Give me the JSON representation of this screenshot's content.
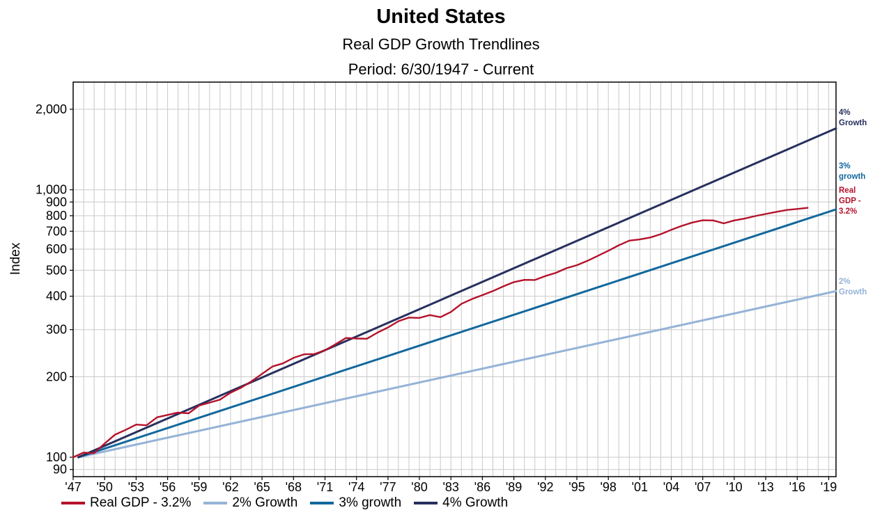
{
  "chart_data": {
    "type": "line",
    "title": "United States",
    "subtitle": "Real GDP Growth Trendlines",
    "period": "Period: 6/30/1947 - Current",
    "y_label": "Index",
    "y_scale": "log",
    "grid": true,
    "x_range": [
      1947,
      2019.7
    ],
    "y_range": [
      84.6,
      2527
    ],
    "x_ticks": [
      {
        "v": 1947,
        "label": "'47"
      },
      {
        "v": 1950,
        "label": "'50"
      },
      {
        "v": 1953,
        "label": "'53"
      },
      {
        "v": 1956,
        "label": "'56"
      },
      {
        "v": 1959,
        "label": "'59"
      },
      {
        "v": 1962,
        "label": "'62"
      },
      {
        "v": 1965,
        "label": "'65"
      },
      {
        "v": 1968,
        "label": "'68"
      },
      {
        "v": 1971,
        "label": "'71"
      },
      {
        "v": 1974,
        "label": "'74"
      },
      {
        "v": 1977,
        "label": "'77"
      },
      {
        "v": 1980,
        "label": "'80"
      },
      {
        "v": 1983,
        "label": "'83"
      },
      {
        "v": 1986,
        "label": "'86"
      },
      {
        "v": 1989,
        "label": "'89"
      },
      {
        "v": 1992,
        "label": "'92"
      },
      {
        "v": 1995,
        "label": "'95"
      },
      {
        "v": 1998,
        "label": "'98"
      },
      {
        "v": 2001,
        "label": "'01"
      },
      {
        "v": 2004,
        "label": "'04"
      },
      {
        "v": 2007,
        "label": "'07"
      },
      {
        "v": 2010,
        "label": "'10"
      },
      {
        "v": 2013,
        "label": "'13"
      },
      {
        "v": 2016,
        "label": "'16"
      },
      {
        "v": 2019,
        "label": "'19"
      }
    ],
    "y_ticks": [
      {
        "v": 2000,
        "label": "2,000"
      },
      {
        "v": 1000,
        "label": "1,000"
      },
      {
        "v": 900,
        "label": "900"
      },
      {
        "v": 800,
        "label": "800"
      },
      {
        "v": 700,
        "label": "700"
      },
      {
        "v": 600,
        "label": "600"
      },
      {
        "v": 500,
        "label": "500"
      },
      {
        "v": 400,
        "label": "400"
      },
      {
        "v": 300,
        "label": "300"
      },
      {
        "v": 200,
        "label": "200"
      },
      {
        "v": 100,
        "label": "100"
      },
      {
        "v": 90,
        "label": "90"
      }
    ],
    "legend": [
      {
        "id": "real_gdp",
        "label": "Real GDP - 3.2%"
      },
      {
        "id": "growth2",
        "label": "2% Growth"
      },
      {
        "id": "growth3",
        "label": "3% growth"
      },
      {
        "id": "growth4",
        "label": "4% Growth"
      }
    ],
    "annotations": {
      "growth4": "4%\nGrowth",
      "growth3": "3%\ngrowth",
      "real_gdp": "Real\nGDP -\n3.2%",
      "growth2": "2%\nGrowth"
    },
    "series": [
      {
        "id": "real_gdp",
        "name": "Real GDP - 3.2%",
        "color": "#b4122b",
        "width": 2.4,
        "x_start": 1947,
        "x_step": 1,
        "values": [
          100,
          104.1,
          103.5,
          112.5,
          121.5,
          126.5,
          132.4,
          131.6,
          141,
          143.9,
          146.9,
          145.9,
          156,
          160,
          164.2,
          174.2,
          181.9,
          192.4,
          204.9,
          218.4,
          224.3,
          235.3,
          242.6,
          243.1,
          251.1,
          264.4,
          279.2,
          277.8,
          277.3,
          292.3,
          305.7,
          322.5,
          332.8,
          331.8,
          340.1,
          334,
          349.4,
          374.5,
          390.2,
          403.9,
          418,
          435.6,
          451.7,
          460.3,
          459.8,
          475.9,
          489.2,
          508.8,
          522.5,
          542.4,
          566.3,
          591.8,
          620.2,
          645.6,
          652.1,
          663.2,
          682.4,
          708.3,
          733.1,
          754.4,
          768.7,
          767.9,
          748.7,
          768.2,
          780.5,
          797.7,
          812,
          826,
          840,
          848,
          856
        ]
      },
      {
        "id": "growth2",
        "name": "2% Growth",
        "color": "#95b3d7",
        "width": 3,
        "points": [
          [
            1947.5,
            100
          ],
          [
            2019.7,
            417.8
          ]
        ]
      },
      {
        "id": "growth3",
        "name": "3% growth",
        "color": "#12689d",
        "width": 3,
        "points": [
          [
            1947.5,
            100
          ],
          [
            2019.7,
            844.9
          ]
        ]
      },
      {
        "id": "growth4",
        "name": "4% Growth",
        "color": "#27305e",
        "width": 3,
        "points": [
          [
            1947.5,
            100
          ],
          [
            2019.7,
            1697
          ]
        ]
      }
    ]
  }
}
